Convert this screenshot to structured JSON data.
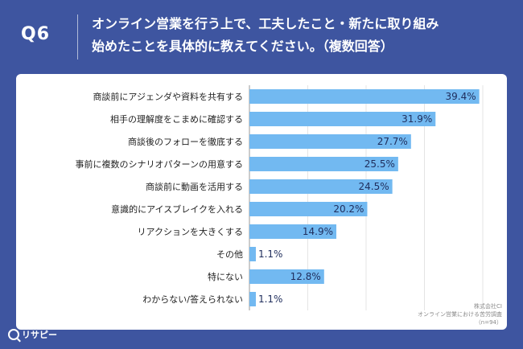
{
  "header": {
    "question_number": "Q6",
    "question_line1": "オンライン営業を行う上で、工夫したこと・新たに取り組み",
    "question_line2": "始めたことを具体的に教えてください。（複数回答）"
  },
  "colors": {
    "background": "#3e55a0",
    "bar": "#72b9f1",
    "card": "#ffffff"
  },
  "chart_data": {
    "type": "bar",
    "orientation": "horizontal",
    "unit": "%",
    "categories": [
      "商談前にアジェンダや資料を共有する",
      "相手の理解度をこまめに確認する",
      "商談後のフォローを徹底する",
      "事前に複数のシナリオパターンの用意する",
      "商談前に動画を活用する",
      "意識的にアイスブレイクを入れる",
      "リアクションを大きくする",
      "その他",
      "特にない",
      "わからない/答えられない"
    ],
    "values": [
      39.4,
      31.9,
      27.7,
      25.5,
      24.5,
      20.2,
      14.9,
      1.1,
      12.8,
      1.1
    ],
    "value_labels": [
      "39.4%",
      "31.9%",
      "27.7%",
      "25.5%",
      "24.5%",
      "20.2%",
      "14.9%",
      "1.1%",
      "12.8%",
      "1.1%"
    ],
    "xlim": [
      0,
      40
    ],
    "grid": true
  },
  "footnote": {
    "line1": "株式会社CI",
    "line2": "オンライン営業における苦労調査",
    "line3": "（n=94）"
  },
  "logo": {
    "text": "リサピー"
  }
}
